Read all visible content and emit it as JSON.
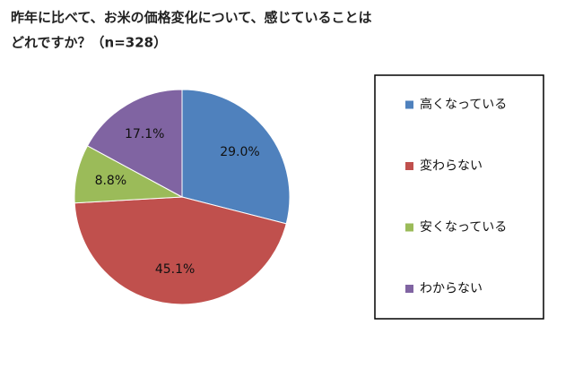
{
  "chart_data": {
    "type": "pie",
    "title": [
      "昨年に比べて、お米の価格変化について、感じていることは",
      "どれですか？（n=328）"
    ],
    "categories": [
      "高くなっている",
      "変わらない",
      "安くなっている",
      "わからない"
    ],
    "values": [
      29.0,
      45.1,
      8.8,
      17.1
    ],
    "value_labels": [
      "29.0%",
      "45.1%",
      "8.8%",
      "17.1%"
    ],
    "colors": [
      "#4f81bd",
      "#c0504d",
      "#9bbb59",
      "#8064a2"
    ],
    "legend": "right"
  }
}
